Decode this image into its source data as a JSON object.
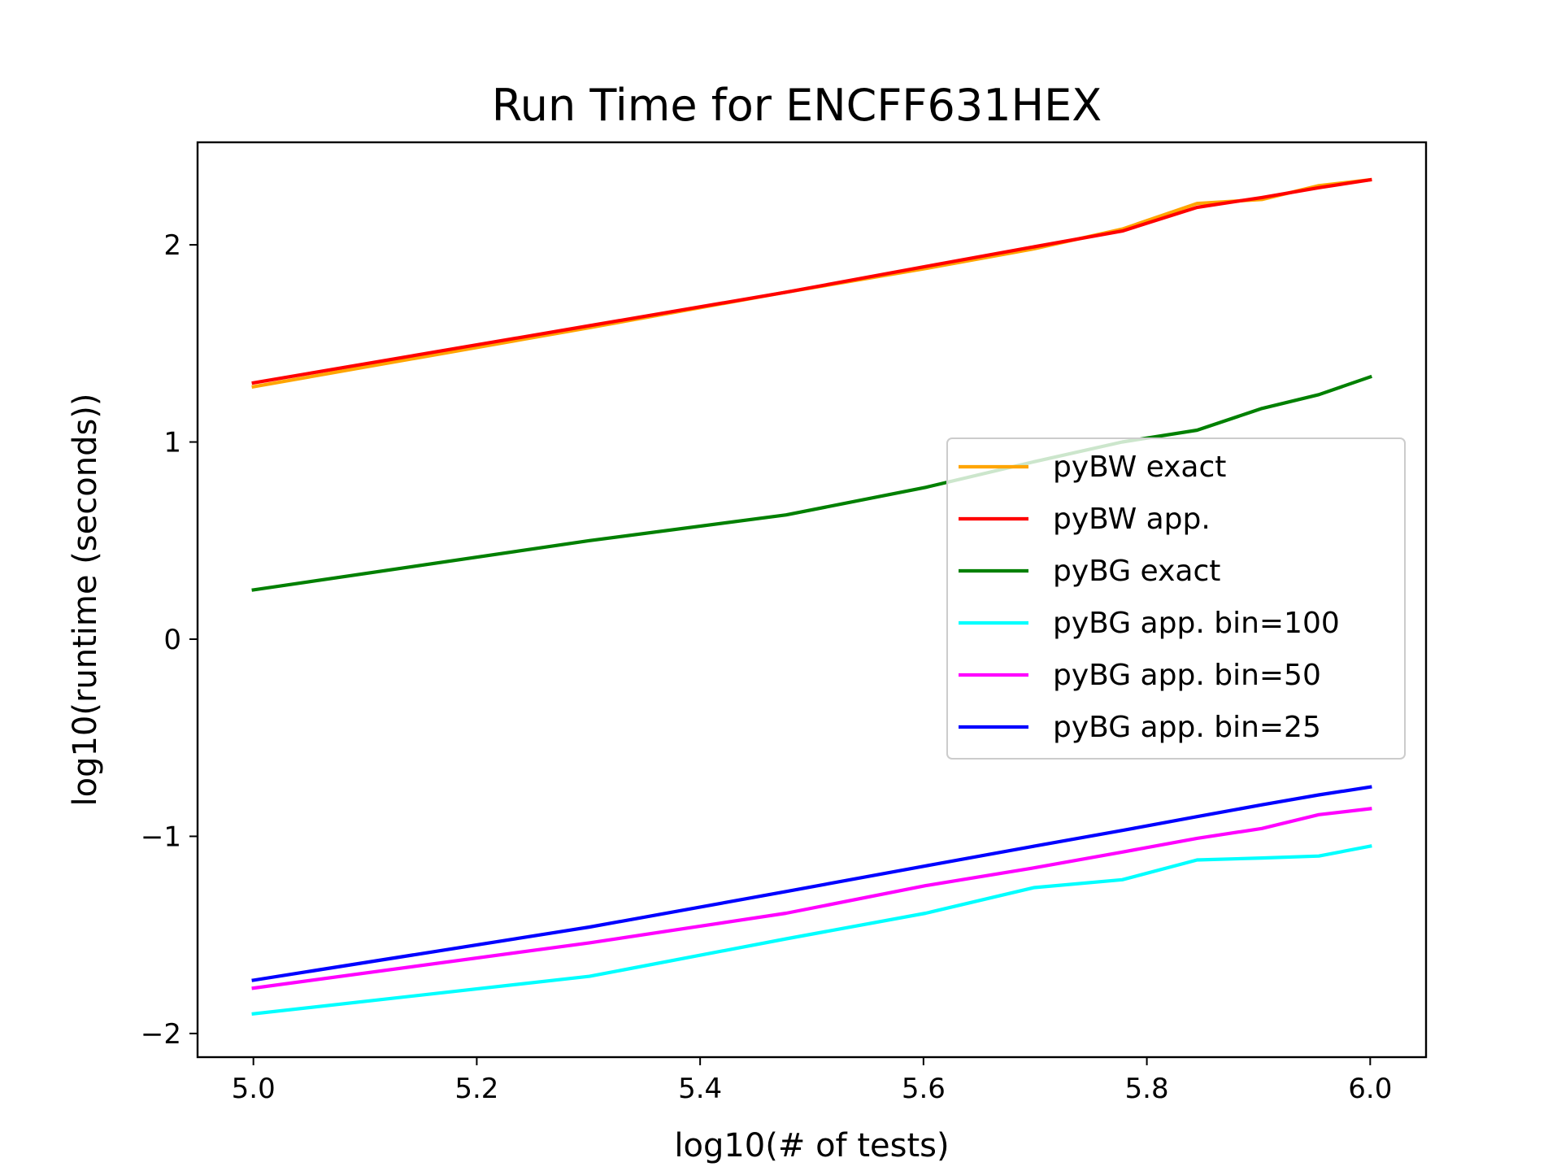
{
  "chart_data": {
    "type": "line",
    "title": "Run Time for ENCFF631HEX",
    "xlabel": "log10(# of tests)",
    "ylabel": "log10(runtime (seconds))",
    "xlim": [
      4.95,
      6.05
    ],
    "ylim": [
      -2.12,
      2.52
    ],
    "xticks": [
      5.0,
      5.2,
      5.4,
      5.6,
      5.8,
      6.0
    ],
    "xtick_labels": [
      "5.0",
      "5.2",
      "5.4",
      "5.6",
      "5.8",
      "6.0"
    ],
    "yticks": [
      -2,
      -1,
      0,
      1,
      2
    ],
    "ytick_labels": [
      "−2",
      "−1",
      "0",
      "1",
      "2"
    ],
    "grid": false,
    "legend_position": "center-right",
    "x": [
      5.0,
      5.301,
      5.477,
      5.602,
      5.699,
      5.778,
      5.845,
      5.903,
      5.954,
      6.0
    ],
    "series": [
      {
        "name": "pyBW exact",
        "color": "#ffa500",
        "values": [
          1.28,
          1.58,
          1.76,
          1.88,
          1.98,
          2.08,
          2.21,
          2.23,
          2.3,
          2.33
        ]
      },
      {
        "name": "pyBW app.",
        "color": "#ff0000",
        "values": [
          1.3,
          1.59,
          1.76,
          1.89,
          1.99,
          2.07,
          2.19,
          2.24,
          2.29,
          2.33
        ]
      },
      {
        "name": "pyBG exact",
        "color": "#008000",
        "values": [
          0.25,
          0.5,
          0.63,
          0.77,
          0.9,
          1.0,
          1.06,
          1.17,
          1.24,
          1.33
        ]
      },
      {
        "name": "pyBG app. bin=100",
        "color": "#00ffff",
        "values": [
          -1.9,
          -1.71,
          -1.52,
          -1.39,
          -1.26,
          -1.22,
          -1.12,
          -1.11,
          -1.1,
          -1.05
        ]
      },
      {
        "name": "pyBG app. bin=50",
        "color": "#ff00ff",
        "values": [
          -1.77,
          -1.54,
          -1.39,
          -1.25,
          -1.16,
          -1.08,
          -1.01,
          -0.96,
          -0.89,
          -0.86
        ]
      },
      {
        "name": "pyBG app. bin=25",
        "color": "#0000ff",
        "values": [
          -1.73,
          -1.46,
          -1.28,
          -1.15,
          -1.05,
          -0.97,
          -0.9,
          -0.84,
          -0.79,
          -0.75
        ]
      }
    ]
  }
}
